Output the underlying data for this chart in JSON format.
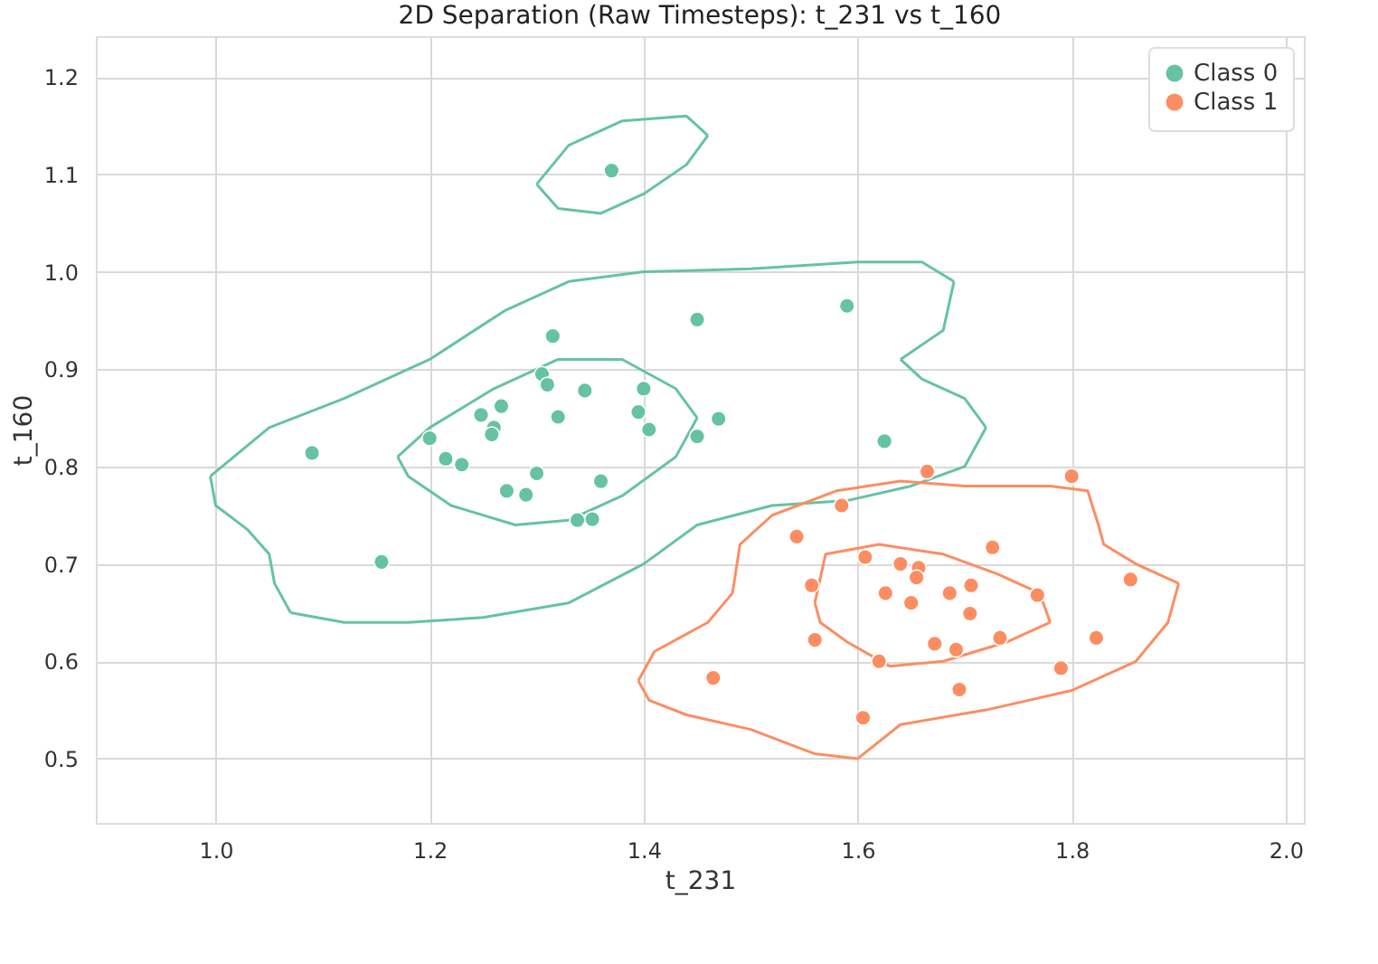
{
  "chart_data": {
    "type": "scatter",
    "title": "2D Separation (Raw Timesteps): t_231 vs t_160",
    "xlabel": "t_231",
    "ylabel": "t_160",
    "xlim": [
      0.888,
      2.017
    ],
    "ylim": [
      0.434,
      1.242
    ],
    "xticks": [
      {
        "value": 1.0,
        "label": "1.0"
      },
      {
        "value": 1.2,
        "label": "1.2"
      },
      {
        "value": 1.4,
        "label": "1.4"
      },
      {
        "value": 1.6,
        "label": "1.6"
      },
      {
        "value": 1.8,
        "label": "1.8"
      },
      {
        "value": 2.0,
        "label": "2.0"
      }
    ],
    "yticks": [
      0.5,
      0.6,
      0.7,
      0.8,
      0.9,
      {
        "value": 1.0,
        "label": "1.0"
      },
      1.1,
      1.2
    ],
    "grid": true,
    "legend": "top right",
    "marker": "circle",
    "series": [
      {
        "name": "Class 0",
        "color": "#66c2a5",
        "x": [
          1.09,
          1.155,
          1.37,
          1.45,
          1.59,
          1.315,
          1.305,
          1.31,
          1.345,
          1.4,
          1.395,
          1.405,
          1.32,
          1.47,
          1.45,
          1.625,
          1.2,
          1.215,
          1.23,
          1.248,
          1.267,
          1.26,
          1.258,
          1.3,
          1.272,
          1.29,
          1.36,
          1.338,
          1.352
        ],
        "values": [
          0.814,
          0.702,
          1.104,
          0.951,
          0.965,
          0.934,
          0.895,
          0.884,
          0.878,
          0.88,
          0.856,
          0.838,
          0.851,
          0.849,
          0.831,
          0.826,
          0.829,
          0.808,
          0.802,
          0.853,
          0.862,
          0.84,
          0.833,
          0.793,
          0.775,
          0.771,
          0.785,
          0.745,
          0.746
        ]
      },
      {
        "name": "Class 1",
        "color": "#fc8d62",
        "x": [
          1.465,
          1.543,
          1.557,
          1.56,
          1.585,
          1.665,
          1.8,
          1.607,
          1.64,
          1.657,
          1.655,
          1.626,
          1.65,
          1.686,
          1.706,
          1.768,
          1.726,
          1.855,
          1.705,
          1.672,
          1.692,
          1.733,
          1.823,
          1.79,
          1.62,
          1.695,
          1.605
        ],
        "values": [
          0.583,
          0.728,
          0.678,
          0.622,
          0.76,
          0.795,
          0.79,
          0.707,
          0.7,
          0.696,
          0.686,
          0.67,
          0.66,
          0.67,
          0.678,
          0.668,
          0.717,
          0.684,
          0.649,
          0.618,
          0.612,
          0.624,
          0.624,
          0.593,
          0.6,
          0.571,
          0.542
        ]
      },
      {
        "type": "line",
        "marker": "none",
        "color": "#66c2a5",
        "x": [
          0.995,
          1.05,
          1.12,
          1.2,
          1.27,
          1.33,
          1.4,
          1.5,
          1.6,
          1.66,
          1.69
        ],
        "values": [
          0.79,
          0.84,
          0.87,
          0.91,
          0.96,
          0.99,
          1.0,
          1.003,
          1.01,
          1.01,
          0.99
        ]
      },
      {
        "type": "line",
        "marker": "none",
        "color": "#66c2a5",
        "x": [
          1.69,
          1.68,
          1.64
        ],
        "values": [
          0.99,
          0.94,
          0.91
        ]
      },
      {
        "type": "line",
        "marker": "none",
        "color": "#66c2a5",
        "x": [
          1.64,
          1.66,
          1.7,
          1.72
        ],
        "values": [
          0.91,
          0.89,
          0.87,
          0.84
        ]
      },
      {
        "type": "line",
        "marker": "none",
        "color": "#66c2a5",
        "x": [
          1.72,
          1.7,
          1.65,
          1.59,
          1.52,
          1.45,
          1.4,
          1.33,
          1.25,
          1.18,
          1.12,
          1.07
        ],
        "values": [
          0.84,
          0.8,
          0.78,
          0.765,
          0.76,
          0.74,
          0.7,
          0.66,
          0.645,
          0.64,
          0.64,
          0.65
        ]
      },
      {
        "type": "line",
        "marker": "none",
        "color": "#66c2a5",
        "x": [
          1.07,
          1.055,
          1.05,
          1.03,
          1.0,
          0.995
        ],
        "values": [
          0.65,
          0.68,
          0.71,
          0.735,
          0.76,
          0.79
        ]
      },
      {
        "type": "line",
        "marker": "none",
        "color": "#66c2a5",
        "x": [
          1.17,
          1.2,
          1.26,
          1.32,
          1.38,
          1.43,
          1.45
        ],
        "values": [
          0.81,
          0.84,
          0.88,
          0.91,
          0.91,
          0.88,
          0.85
        ]
      },
      {
        "type": "line",
        "marker": "none",
        "color": "#66c2a5",
        "x": [
          1.45,
          1.43,
          1.38,
          1.33,
          1.28,
          1.22,
          1.18,
          1.17
        ],
        "values": [
          0.85,
          0.81,
          0.77,
          0.745,
          0.74,
          0.76,
          0.79,
          0.81
        ]
      },
      {
        "type": "line",
        "marker": "none",
        "color": "#66c2a5",
        "x": [
          1.3,
          1.33,
          1.38,
          1.44,
          1.46
        ],
        "values": [
          1.09,
          1.13,
          1.155,
          1.16,
          1.14
        ]
      },
      {
        "type": "line",
        "marker": "none",
        "color": "#66c2a5",
        "x": [
          1.46,
          1.44,
          1.4,
          1.36,
          1.32,
          1.3
        ],
        "values": [
          1.14,
          1.11,
          1.08,
          1.06,
          1.065,
          1.09
        ]
      },
      {
        "type": "line",
        "marker": "none",
        "color": "#fc8d62",
        "x": [
          1.395,
          1.41,
          1.46,
          1.483,
          1.49,
          1.52,
          1.58,
          1.64,
          1.7,
          1.78,
          1.815,
          1.825,
          1.83,
          1.86,
          1.9
        ],
        "values": [
          0.58,
          0.61,
          0.64,
          0.67,
          0.72,
          0.75,
          0.775,
          0.785,
          0.78,
          0.78,
          0.775,
          0.74,
          0.72,
          0.7,
          0.68
        ]
      },
      {
        "type": "line",
        "marker": "none",
        "color": "#fc8d62",
        "x": [
          1.9,
          1.89,
          1.86,
          1.8,
          1.72,
          1.64,
          1.6,
          1.56,
          1.5,
          1.44,
          1.405,
          1.395
        ],
        "values": [
          0.68,
          0.64,
          0.6,
          0.57,
          0.55,
          0.535,
          0.5,
          0.505,
          0.53,
          0.545,
          0.56,
          0.58
        ]
      },
      {
        "type": "line",
        "marker": "none",
        "color": "#fc8d62",
        "x": [
          1.56,
          1.57,
          1.62,
          1.68,
          1.73,
          1.77,
          1.78
        ],
        "values": [
          0.66,
          0.71,
          0.72,
          0.71,
          0.69,
          0.67,
          0.64
        ]
      },
      {
        "type": "line",
        "marker": "none",
        "color": "#fc8d62",
        "x": [
          1.78,
          1.74,
          1.68,
          1.63,
          1.59,
          1.565,
          1.56
        ],
        "values": [
          0.64,
          0.62,
          0.6,
          0.595,
          0.62,
          0.64,
          0.66
        ]
      }
    ]
  }
}
